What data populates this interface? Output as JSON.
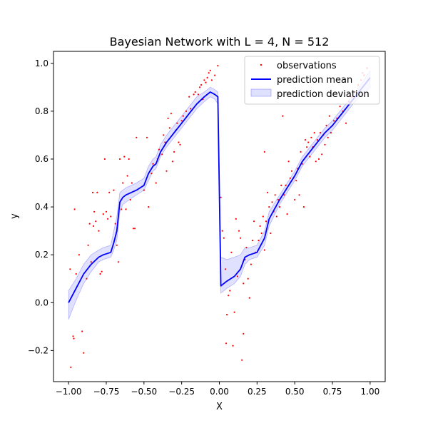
{
  "chart_data": {
    "type": "scatter",
    "title": "Bayesian Network with L = 4, N = 512",
    "xlabel": "X",
    "ylabel": "y",
    "xlim": [
      -1.1,
      1.1
    ],
    "ylim": [
      -0.33,
      1.05
    ],
    "grid": false,
    "legend_position": "top-right",
    "x_ticks": [
      {
        "value": -1.0,
        "label": "−1.00"
      },
      {
        "value": -0.75,
        "label": "−0.75"
      },
      {
        "value": -0.5,
        "label": "−0.50"
      },
      {
        "value": -0.25,
        "label": "−0.25"
      },
      {
        "value": 0.0,
        "label": "0.00"
      },
      {
        "value": 0.25,
        "label": "0.25"
      },
      {
        "value": 0.5,
        "label": "0.50"
      },
      {
        "value": 0.75,
        "label": "0.75"
      },
      {
        "value": 1.0,
        "label": "1.00"
      }
    ],
    "y_ticks": [
      {
        "value": -0.2,
        "label": "−0.2"
      },
      {
        "value": 0.0,
        "label": "0.0"
      },
      {
        "value": 0.2,
        "label": "0.2"
      },
      {
        "value": 0.4,
        "label": "0.4"
      },
      {
        "value": 0.6,
        "label": "0.6"
      },
      {
        "value": 0.8,
        "label": "0.8"
      },
      {
        "value": 1.0,
        "label": "1.0"
      }
    ],
    "series": [
      {
        "name": "observations",
        "kind": "scatter",
        "color": "#ff0000",
        "points": [
          [
            -0.99,
            0.14
          ],
          [
            -0.985,
            -0.27
          ],
          [
            -0.97,
            -0.14
          ],
          [
            -0.965,
            -0.15
          ],
          [
            -0.96,
            0.39
          ],
          [
            -0.95,
            0.12
          ],
          [
            -0.93,
            0.2
          ],
          [
            -0.91,
            -0.12
          ],
          [
            -0.9,
            -0.21
          ],
          [
            -0.88,
            0.1
          ],
          [
            -0.87,
            0.24
          ],
          [
            -0.86,
            0.33
          ],
          [
            -0.85,
            0.17
          ],
          [
            -0.84,
            0.46
          ],
          [
            -0.835,
            0.32
          ],
          [
            -0.83,
            0.38
          ],
          [
            -0.82,
            0.34
          ],
          [
            -0.81,
            0.46
          ],
          [
            -0.8,
            0.3
          ],
          [
            -0.79,
            0.12
          ],
          [
            -0.78,
            0.13
          ],
          [
            -0.77,
            0.37
          ],
          [
            -0.76,
            0.6
          ],
          [
            -0.75,
            0.38
          ],
          [
            -0.74,
            0.35
          ],
          [
            -0.73,
            0.46
          ],
          [
            -0.72,
            0.36
          ],
          [
            -0.7,
            0.47
          ],
          [
            -0.69,
            0.33
          ],
          [
            -0.68,
            0.24
          ],
          [
            -0.67,
            0.17
          ],
          [
            -0.66,
            0.6
          ],
          [
            -0.65,
            0.39
          ],
          [
            -0.64,
            0.5
          ],
          [
            -0.63,
            0.61
          ],
          [
            -0.62,
            0.39
          ],
          [
            -0.61,
            0.53
          ],
          [
            -0.6,
            0.6
          ],
          [
            -0.59,
            0.43
          ],
          [
            -0.58,
            0.5
          ],
          [
            -0.57,
            0.31
          ],
          [
            -0.56,
            0.31
          ],
          [
            -0.55,
            0.69
          ],
          [
            -0.5,
            0.47
          ],
          [
            -0.48,
            0.69
          ],
          [
            -0.47,
            0.4
          ],
          [
            -0.45,
            0.54
          ],
          [
            -0.44,
            0.58
          ],
          [
            -0.42,
            0.5
          ],
          [
            -0.41,
            0.6
          ],
          [
            -0.4,
            0.64
          ],
          [
            -0.38,
            0.62
          ],
          [
            -0.37,
            0.7
          ],
          [
            -0.36,
            0.67
          ],
          [
            -0.35,
            0.55
          ],
          [
            -0.34,
            0.77
          ],
          [
            -0.33,
            0.73
          ],
          [
            -0.32,
            0.79
          ],
          [
            -0.31,
            0.59
          ],
          [
            -0.3,
            0.63
          ],
          [
            -0.29,
            0.72
          ],
          [
            -0.28,
            0.75
          ],
          [
            -0.27,
            0.67
          ],
          [
            -0.26,
            0.66
          ],
          [
            -0.25,
            0.76
          ],
          [
            -0.24,
            0.78
          ],
          [
            -0.22,
            0.8
          ],
          [
            -0.2,
            0.86
          ],
          [
            -0.19,
            0.81
          ],
          [
            -0.17,
            0.87
          ],
          [
            -0.16,
            0.88
          ],
          [
            -0.14,
            0.87
          ],
          [
            -0.13,
            0.9
          ],
          [
            -0.12,
            0.91
          ],
          [
            -0.11,
            0.85
          ],
          [
            -0.1,
            0.93
          ],
          [
            -0.09,
            0.92
          ],
          [
            -0.08,
            0.94
          ],
          [
            -0.07,
            0.96
          ],
          [
            -0.06,
            0.97
          ],
          [
            -0.05,
            0.93
          ],
          [
            -0.03,
            0.95
          ],
          [
            -0.01,
            0.99
          ],
          [
            0.01,
            0.44
          ],
          [
            0.02,
            0.3
          ],
          [
            0.03,
            0.27
          ],
          [
            0.04,
            0.14
          ],
          [
            0.045,
            -0.17
          ],
          [
            0.05,
            -0.05
          ],
          [
            0.06,
            0.03
          ],
          [
            0.07,
            0.05
          ],
          [
            0.08,
            0.21
          ],
          [
            0.09,
            -0.18
          ],
          [
            0.1,
            -0.04
          ],
          [
            0.11,
            0.35
          ],
          [
            0.12,
            0.11
          ],
          [
            0.13,
            0.3
          ],
          [
            0.14,
            0.27
          ],
          [
            0.15,
            -0.24
          ],
          [
            0.16,
            -0.13
          ],
          [
            0.16,
            0.08
          ],
          [
            0.17,
            0.18
          ],
          [
            0.18,
            0.23
          ],
          [
            0.19,
            0.1
          ],
          [
            0.2,
            0.02
          ],
          [
            0.21,
            0.16
          ],
          [
            0.22,
            0.26
          ],
          [
            0.23,
            0.34
          ],
          [
            0.24,
            0.21
          ],
          [
            0.26,
            0.26
          ],
          [
            0.27,
            0.32
          ],
          [
            0.28,
            0.29
          ],
          [
            0.29,
            0.36
          ],
          [
            0.3,
            0.22
          ],
          [
            0.3,
            0.63
          ],
          [
            0.31,
            0.34
          ],
          [
            0.32,
            0.46
          ],
          [
            0.33,
            0.4
          ],
          [
            0.34,
            0.29
          ],
          [
            0.35,
            0.42
          ],
          [
            0.36,
            0.38
          ],
          [
            0.37,
            0.45
          ],
          [
            0.38,
            0.36
          ],
          [
            0.39,
            0.43
          ],
          [
            0.4,
            0.4
          ],
          [
            0.41,
            0.49
          ],
          [
            0.42,
            0.78
          ],
          [
            0.43,
            0.45
          ],
          [
            0.44,
            0.49
          ],
          [
            0.45,
            0.37
          ],
          [
            0.46,
            0.59
          ],
          [
            0.47,
            0.52
          ],
          [
            0.48,
            0.55
          ],
          [
            0.49,
            0.52
          ],
          [
            0.5,
            0.43
          ],
          [
            0.51,
            0.51
          ],
          [
            0.52,
            0.56
          ],
          [
            0.53,
            0.45
          ],
          [
            0.54,
            0.63
          ],
          [
            0.55,
            0.58
          ],
          [
            0.56,
            0.4
          ],
          [
            0.57,
            0.68
          ],
          [
            0.58,
            0.65
          ],
          [
            0.59,
            0.67
          ],
          [
            0.6,
            0.61
          ],
          [
            0.61,
            0.69
          ],
          [
            0.62,
            0.65
          ],
          [
            0.63,
            0.71
          ],
          [
            0.64,
            0.59
          ],
          [
            0.65,
            0.68
          ],
          [
            0.66,
            0.6
          ],
          [
            0.67,
            0.71
          ],
          [
            0.68,
            0.62
          ],
          [
            0.69,
            0.7
          ],
          [
            0.7,
            0.66
          ],
          [
            0.71,
            0.74
          ],
          [
            0.72,
            0.69
          ],
          [
            0.73,
            0.78
          ],
          [
            0.74,
            0.71
          ],
          [
            0.75,
            0.74
          ],
          [
            0.76,
            0.76
          ],
          [
            0.78,
            0.77
          ],
          [
            0.8,
            0.82
          ],
          [
            0.82,
            0.8
          ],
          [
            0.84,
            0.75
          ],
          [
            0.86,
            0.84
          ],
          [
            0.88,
            0.86
          ],
          [
            0.9,
            0.88
          ],
          [
            0.92,
            0.91
          ],
          [
            0.94,
            0.93
          ],
          [
            0.95,
            0.96
          ],
          [
            0.96,
            0.95
          ],
          [
            0.98,
            0.98
          ]
        ]
      },
      {
        "name": "prediction mean",
        "kind": "line",
        "color": "#0000ff",
        "points": [
          [
            -1.0,
            0.0
          ],
          [
            -0.95,
            0.06
          ],
          [
            -0.9,
            0.12
          ],
          [
            -0.85,
            0.16
          ],
          [
            -0.8,
            0.19
          ],
          [
            -0.77,
            0.2
          ],
          [
            -0.72,
            0.21
          ],
          [
            -0.7,
            0.25
          ],
          [
            -0.68,
            0.3
          ],
          [
            -0.66,
            0.42
          ],
          [
            -0.64,
            0.44
          ],
          [
            -0.62,
            0.45
          ],
          [
            -0.55,
            0.47
          ],
          [
            -0.5,
            0.49
          ],
          [
            -0.47,
            0.54
          ],
          [
            -0.44,
            0.57
          ],
          [
            -0.42,
            0.58
          ],
          [
            -0.39,
            0.63
          ],
          [
            -0.35,
            0.67
          ],
          [
            -0.3,
            0.71
          ],
          [
            -0.25,
            0.75
          ],
          [
            -0.2,
            0.79
          ],
          [
            -0.15,
            0.83
          ],
          [
            -0.1,
            0.86
          ],
          [
            -0.06,
            0.88
          ],
          [
            -0.03,
            0.87
          ],
          [
            -0.01,
            0.86
          ],
          [
            0.01,
            0.07
          ],
          [
            0.05,
            0.09
          ],
          [
            0.1,
            0.11
          ],
          [
            0.14,
            0.14
          ],
          [
            0.17,
            0.19
          ],
          [
            0.2,
            0.2
          ],
          [
            0.25,
            0.21
          ],
          [
            0.3,
            0.27
          ],
          [
            0.33,
            0.35
          ],
          [
            0.4,
            0.43
          ],
          [
            0.45,
            0.48
          ],
          [
            0.5,
            0.53
          ],
          [
            0.55,
            0.59
          ],
          [
            0.6,
            0.63
          ],
          [
            0.65,
            0.67
          ],
          [
            0.7,
            0.71
          ],
          [
            0.75,
            0.74
          ],
          [
            0.8,
            0.78
          ],
          [
            0.85,
            0.82
          ],
          [
            0.9,
            0.86
          ],
          [
            0.95,
            0.9
          ],
          [
            1.0,
            0.94
          ]
        ]
      },
      {
        "name": "prediction deviation",
        "kind": "band",
        "color": "#0000ff",
        "x": [
          -1.0,
          -0.95,
          -0.9,
          -0.85,
          -0.8,
          -0.77,
          -0.72,
          -0.7,
          -0.68,
          -0.66,
          -0.64,
          -0.62,
          -0.55,
          -0.5,
          -0.47,
          -0.44,
          -0.42,
          -0.39,
          -0.35,
          -0.3,
          -0.25,
          -0.2,
          -0.15,
          -0.1,
          -0.06,
          -0.03,
          -0.01,
          0.01,
          0.05,
          0.1,
          0.14,
          0.17,
          0.2,
          0.25,
          0.3,
          0.33,
          0.4,
          0.45,
          0.5,
          0.55,
          0.6,
          0.65,
          0.7,
          0.75,
          0.8,
          0.85,
          0.9,
          0.95,
          1.0
        ],
        "lower": [
          -0.07,
          0.01,
          0.08,
          0.13,
          0.17,
          0.18,
          0.19,
          0.22,
          0.26,
          0.38,
          0.41,
          0.42,
          0.45,
          0.47,
          0.51,
          0.55,
          0.56,
          0.61,
          0.65,
          0.69,
          0.73,
          0.77,
          0.81,
          0.84,
          0.86,
          0.85,
          0.83,
          0.04,
          0.06,
          0.08,
          0.11,
          0.16,
          0.18,
          0.19,
          0.24,
          0.32,
          0.41,
          0.46,
          0.51,
          0.57,
          0.61,
          0.65,
          0.69,
          0.72,
          0.76,
          0.8,
          0.84,
          0.87,
          0.9
        ],
        "upper": [
          0.05,
          0.1,
          0.16,
          0.2,
          0.22,
          0.23,
          0.24,
          0.3,
          0.36,
          0.46,
          0.47,
          0.48,
          0.5,
          0.52,
          0.57,
          0.6,
          0.61,
          0.66,
          0.7,
          0.74,
          0.78,
          0.82,
          0.86,
          0.88,
          0.9,
          0.89,
          0.88,
          0.19,
          0.18,
          0.19,
          0.2,
          0.23,
          0.23,
          0.24,
          0.3,
          0.38,
          0.45,
          0.5,
          0.55,
          0.61,
          0.65,
          0.69,
          0.73,
          0.76,
          0.8,
          0.84,
          0.88,
          0.92,
          0.97
        ]
      }
    ]
  }
}
